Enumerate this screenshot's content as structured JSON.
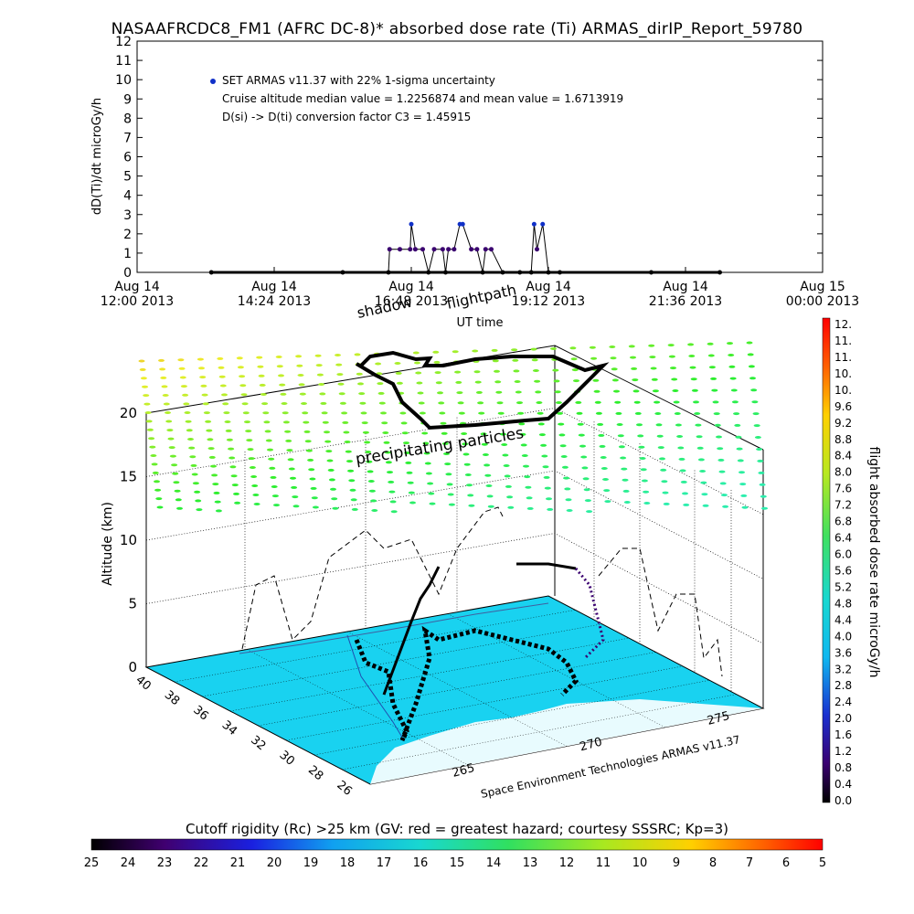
{
  "title": "NASAAFRCDC8_FM1 (AFRC DC-8)* absorbed dose rate (Ti) ARMAS_dirIP_Report_59780",
  "colors": {
    "series": "#1030c8",
    "flight_line": "#000000",
    "ground": "#19d2f0"
  },
  "chart_data": [
    {
      "type": "line",
      "ylabel": "dD(Ti)/dt microGy/h",
      "xlabel": "UT time",
      "ylim": [
        0,
        12
      ],
      "yticks": [
        "0",
        "1",
        "2",
        "3",
        "4",
        "5",
        "6",
        "7",
        "8",
        "9",
        "10",
        "11",
        "12"
      ],
      "xticks": [
        {
          "line1": "Aug 14",
          "line2": "12:00 2013"
        },
        {
          "line1": "Aug 14",
          "line2": "14:24 2013"
        },
        {
          "line1": "Aug 14",
          "line2": "16:48 2013"
        },
        {
          "line1": "Aug 14",
          "line2": "19:12 2013"
        },
        {
          "line1": "Aug 14",
          "line2": "21:36 2013"
        },
        {
          "line1": "Aug 15",
          "line2": "00:00 2013"
        }
      ],
      "annotations": [
        "SET ARMAS v11.37 with 22% 1-sigma uncertainty",
        "Cruise altitude median value = 1.2256874 and mean value = 1.6713919",
        "D(si) -> D(ti) conversion factor C3 = 1.45915"
      ],
      "legend_position": "top-left",
      "grid": false,
      "series": [
        {
          "name": "SET ARMAS v11.37 with 22% 1-sigma uncertainty",
          "x_hours": [
            13.3,
            15.6,
            16.4,
            16.42,
            16.6,
            16.78,
            16.8,
            16.87,
            17.0,
            17.1,
            17.2,
            17.35,
            17.4,
            17.45,
            17.55,
            17.65,
            17.7,
            17.85,
            17.95,
            18.05,
            18.1,
            18.2,
            18.4,
            18.7,
            18.9,
            18.95,
            19.0,
            19.1,
            19.2,
            19.4,
            21.0,
            22.2
          ],
          "y": [
            0,
            0,
            0,
            1.2,
            1.2,
            1.2,
            2.5,
            1.2,
            1.2,
            0,
            1.2,
            1.2,
            0,
            1.2,
            1.2,
            2.5,
            2.5,
            1.2,
            1.2,
            0,
            1.2,
            1.2,
            0,
            0,
            0,
            2.5,
            1.2,
            2.5,
            0,
            0,
            0,
            0
          ]
        }
      ]
    },
    {
      "type": "scatter",
      "ylabel": "Altitude (km)",
      "zticks": [
        "0",
        "5",
        "10",
        "15",
        "20"
      ],
      "lat_ticks": [
        "40",
        "38",
        "36",
        "34",
        "32",
        "30",
        "28",
        "26"
      ],
      "lon_ticks": [
        "265",
        "270",
        "275"
      ],
      "footer": "Space Environment Technologies ARMAS v11.37",
      "annotations": [
        "shadow",
        "flightpath",
        "precipitating particles"
      ],
      "colorbar_right": {
        "label": "flight absorbed dose rate microGy/h",
        "range": [
          0,
          12
        ],
        "ticks": [
          "12.",
          "11.",
          "11.",
          "10.",
          "10.",
          "9.6",
          "9.2",
          "8.8",
          "8.4",
          "8.0",
          "7.6",
          "7.2",
          "6.8",
          "6.4",
          "6.0",
          "5.6",
          "5.2",
          "4.8",
          "4.4",
          "4.0",
          "3.6",
          "3.2",
          "2.8",
          "2.4",
          "2.0",
          "1.6",
          "1.2",
          "0.8",
          "0.4",
          "0.0"
        ]
      },
      "colorbar_bottom": {
        "label": "Cutoff rigidity (Rc) >25 km (GV: red = greatest hazard; courtesy SSSRC; Kp=3)",
        "ticks": [
          "25",
          "24",
          "23",
          "22",
          "21",
          "20",
          "19",
          "18",
          "17",
          "16",
          "15",
          "14",
          "13",
          "12",
          "11",
          "10",
          "9",
          "8",
          "7",
          "6",
          "5"
        ]
      }
    }
  ]
}
